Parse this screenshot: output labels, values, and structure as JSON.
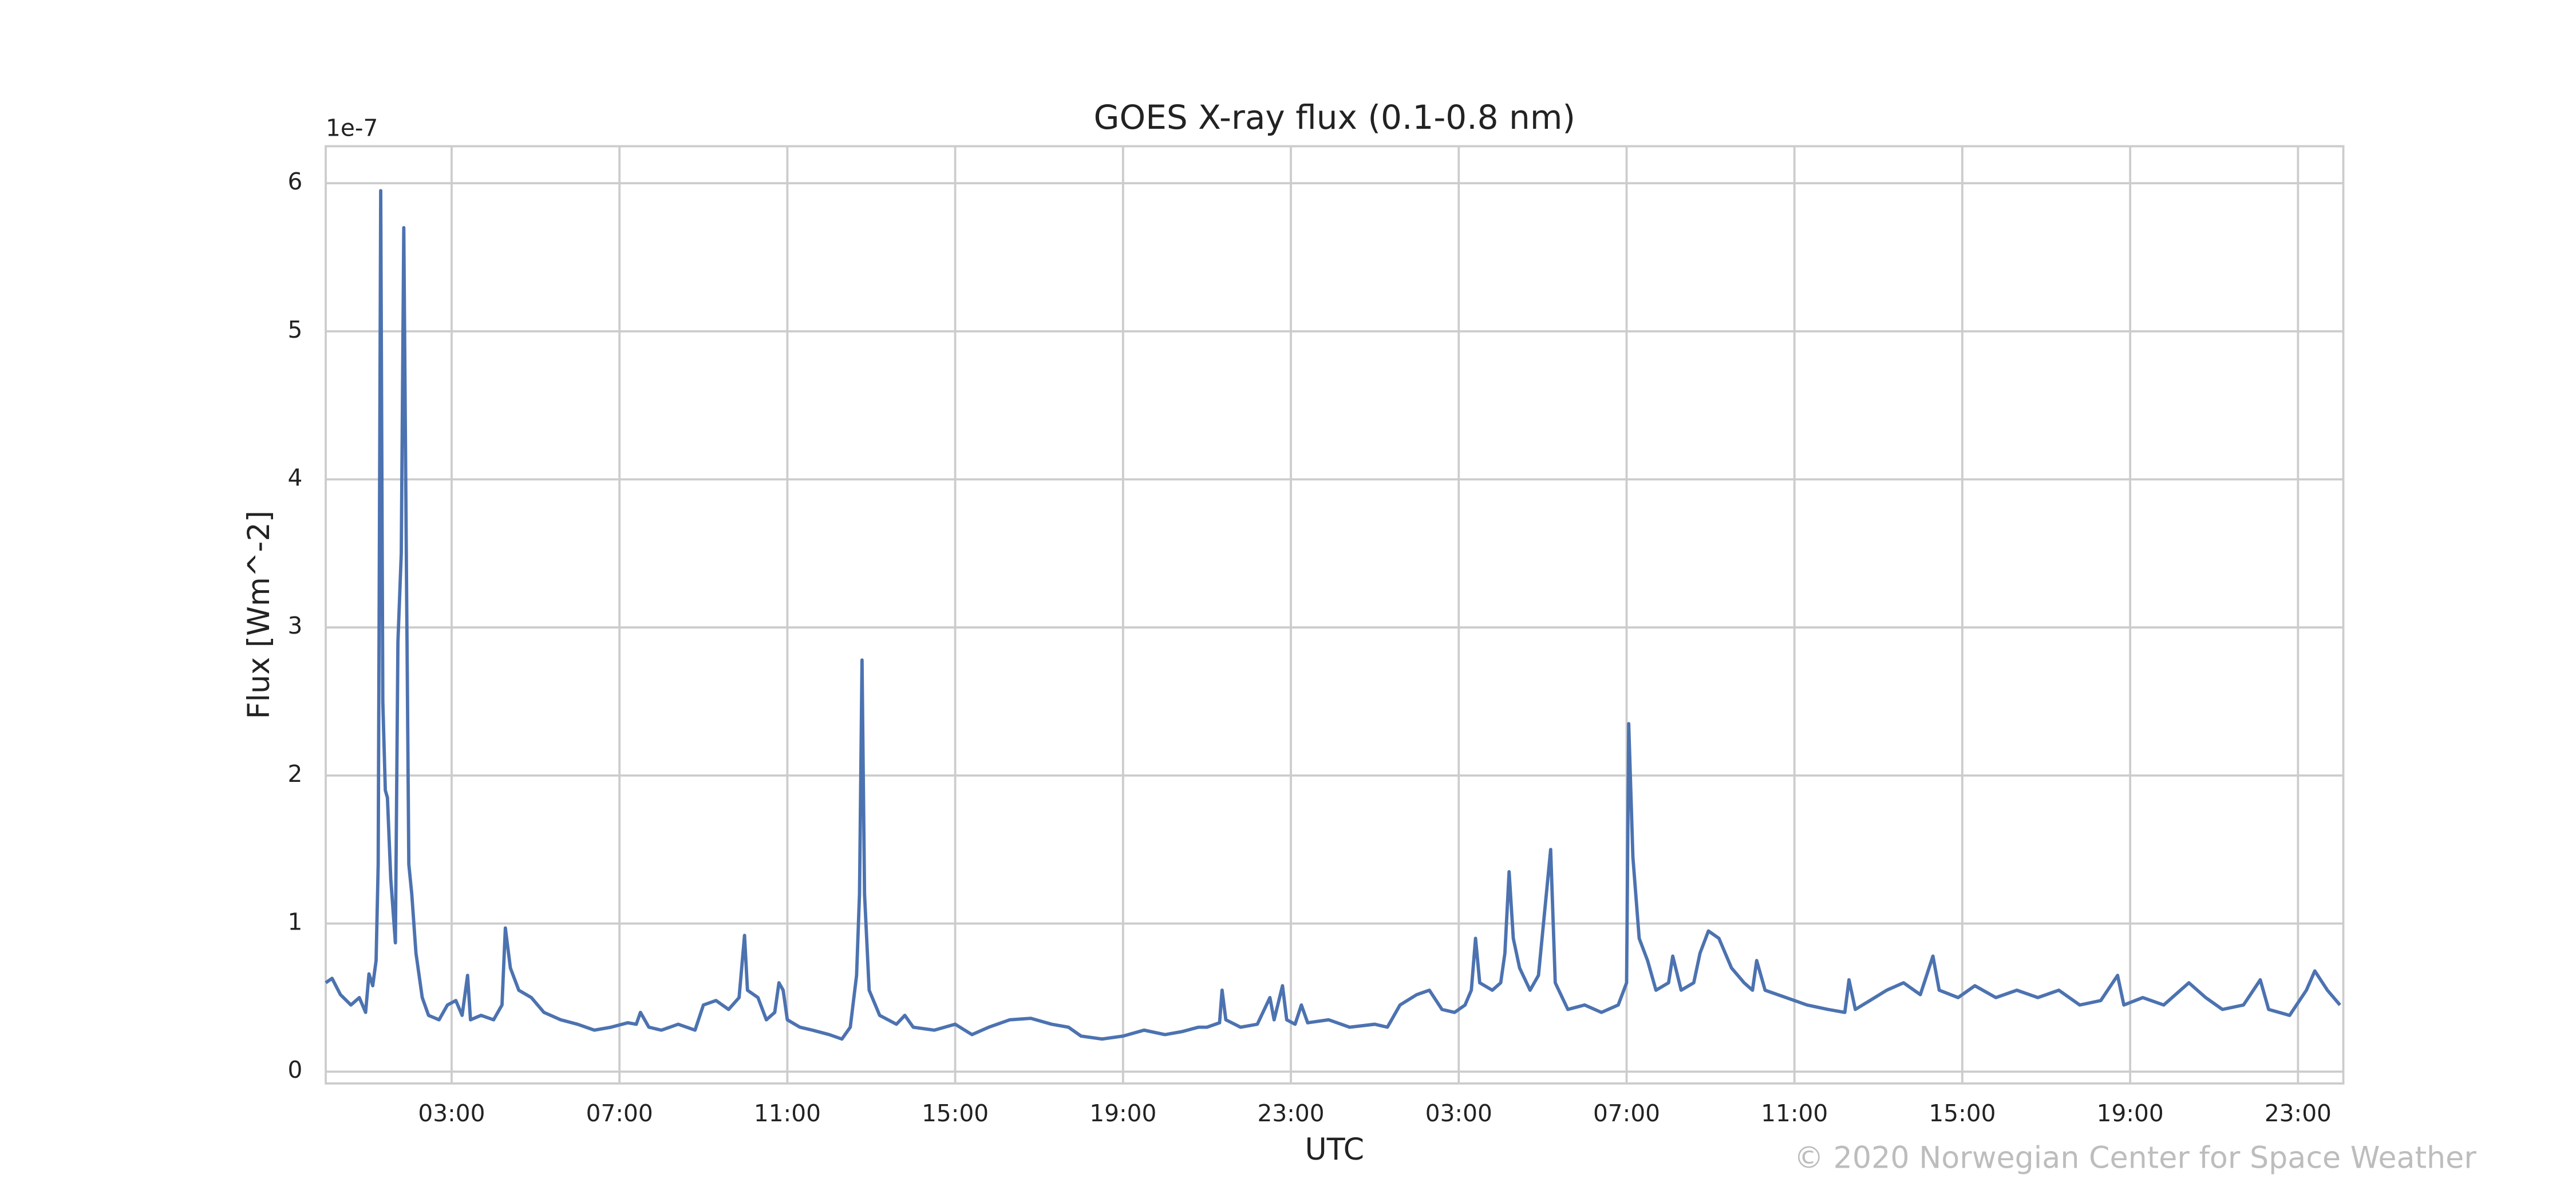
{
  "chart_data": {
    "type": "line",
    "title": "GOES X-ray flux (0.1-0.8 nm)",
    "x_label": "UTC",
    "y_label": "Flux [Wm^-2]",
    "y_offset_label": "1e-7",
    "copyright": "© 2020 Norwegian Center for Space Weather",
    "color": "#4c72b0",
    "grid": true,
    "xlim": [
      0,
      48.08
    ],
    "ylim": [
      -0.08,
      6.25
    ],
    "xticks": [
      {
        "value": 3,
        "label": "03:00"
      },
      {
        "value": 7,
        "label": "07:00"
      },
      {
        "value": 11,
        "label": "11:00"
      },
      {
        "value": 15,
        "label": "15:00"
      },
      {
        "value": 19,
        "label": "19:00"
      },
      {
        "value": 23,
        "label": "23:00"
      },
      {
        "value": 27,
        "label": "03:00"
      },
      {
        "value": 31,
        "label": "07:00"
      },
      {
        "value": 35,
        "label": "11:00"
      },
      {
        "value": 39,
        "label": "15:00"
      },
      {
        "value": 43,
        "label": "19:00"
      },
      {
        "value": 47,
        "label": "23:00"
      }
    ],
    "yticks": [
      0,
      1,
      2,
      3,
      4,
      5,
      6
    ],
    "x": [
      0.0,
      0.15,
      0.35,
      0.6,
      0.8,
      0.95,
      1.03,
      1.12,
      1.2,
      1.25,
      1.31,
      1.36,
      1.42,
      1.47,
      1.55,
      1.66,
      1.72,
      1.8,
      1.86,
      1.92,
      1.98,
      2.05,
      2.15,
      2.3,
      2.45,
      2.7,
      2.9,
      3.1,
      3.25,
      3.38,
      3.45,
      3.7,
      4.0,
      4.2,
      4.28,
      4.4,
      4.6,
      4.9,
      5.2,
      5.6,
      6.0,
      6.4,
      6.8,
      7.2,
      7.4,
      7.5,
      7.7,
      8.0,
      8.4,
      8.8,
      9.0,
      9.3,
      9.6,
      9.85,
      9.98,
      10.05,
      10.3,
      10.5,
      10.7,
      10.8,
      10.9,
      11.0,
      11.3,
      11.6,
      12.0,
      12.3,
      12.5,
      12.65,
      12.72,
      12.78,
      12.84,
      12.95,
      13.2,
      13.6,
      13.8,
      14.0,
      14.5,
      15.0,
      15.4,
      15.8,
      16.3,
      16.8,
      17.3,
      17.7,
      18.0,
      18.5,
      19.0,
      19.5,
      20.0,
      20.4,
      20.8,
      21.0,
      21.3,
      21.36,
      21.45,
      21.8,
      22.2,
      22.5,
      22.6,
      22.8,
      22.9,
      23.1,
      23.25,
      23.4,
      23.9,
      24.4,
      25.0,
      25.3,
      25.6,
      26.0,
      26.3,
      26.6,
      26.9,
      27.15,
      27.3,
      27.4,
      27.5,
      27.8,
      28.0,
      28.1,
      28.2,
      28.3,
      28.45,
      28.7,
      28.9,
      29.19,
      29.3,
      29.6,
      30.0,
      30.4,
      30.8,
      31.0,
      31.05,
      31.15,
      31.3,
      31.5,
      31.7,
      32.0,
      32.1,
      32.3,
      32.6,
      32.75,
      32.95,
      33.2,
      33.5,
      33.8,
      34.0,
      34.1,
      34.3,
      34.8,
      35.3,
      35.8,
      36.2,
      36.3,
      36.45,
      36.8,
      37.2,
      37.6,
      38.0,
      38.3,
      38.45,
      38.9,
      39.3,
      39.8,
      40.3,
      40.8,
      41.3,
      41.8,
      42.3,
      42.7,
      42.85,
      43.3,
      43.8,
      44.4,
      44.8,
      45.2,
      45.7,
      46.1,
      46.3,
      46.8,
      47.2,
      47.4,
      47.7,
      48.0
    ],
    "values": [
      0.6,
      0.63,
      0.52,
      0.45,
      0.5,
      0.4,
      0.66,
      0.58,
      0.75,
      1.4,
      5.95,
      2.5,
      1.9,
      1.85,
      1.3,
      0.87,
      2.9,
      3.5,
      5.7,
      3.5,
      1.4,
      1.2,
      0.8,
      0.5,
      0.38,
      0.35,
      0.45,
      0.48,
      0.38,
      0.65,
      0.35,
      0.38,
      0.35,
      0.45,
      0.97,
      0.7,
      0.55,
      0.5,
      0.4,
      0.35,
      0.32,
      0.28,
      0.3,
      0.33,
      0.32,
      0.4,
      0.3,
      0.28,
      0.32,
      0.28,
      0.45,
      0.48,
      0.42,
      0.5,
      0.92,
      0.55,
      0.5,
      0.35,
      0.4,
      0.6,
      0.55,
      0.35,
      0.3,
      0.28,
      0.25,
      0.22,
      0.3,
      0.65,
      1.2,
      2.78,
      1.2,
      0.55,
      0.38,
      0.32,
      0.38,
      0.3,
      0.28,
      0.32,
      0.25,
      0.3,
      0.35,
      0.36,
      0.32,
      0.3,
      0.24,
      0.22,
      0.24,
      0.28,
      0.25,
      0.27,
      0.3,
      0.3,
      0.33,
      0.55,
      0.35,
      0.3,
      0.32,
      0.5,
      0.35,
      0.58,
      0.35,
      0.32,
      0.45,
      0.33,
      0.35,
      0.3,
      0.32,
      0.3,
      0.45,
      0.52,
      0.55,
      0.42,
      0.4,
      0.45,
      0.55,
      0.9,
      0.6,
      0.55,
      0.6,
      0.8,
      1.35,
      0.9,
      0.7,
      0.55,
      0.65,
      1.5,
      0.6,
      0.42,
      0.45,
      0.4,
      0.45,
      0.6,
      2.35,
      1.45,
      0.9,
      0.75,
      0.55,
      0.6,
      0.78,
      0.55,
      0.6,
      0.8,
      0.95,
      0.9,
      0.7,
      0.6,
      0.55,
      0.75,
      0.55,
      0.5,
      0.45,
      0.42,
      0.4,
      0.62,
      0.42,
      0.48,
      0.55,
      0.6,
      0.52,
      0.78,
      0.55,
      0.5,
      0.58,
      0.5,
      0.55,
      0.5,
      0.55,
      0.45,
      0.48,
      0.65,
      0.45,
      0.5,
      0.45,
      0.6,
      0.5,
      0.42,
      0.45,
      0.62,
      0.42,
      0.38,
      0.55,
      0.68,
      0.55,
      0.45
    ]
  }
}
